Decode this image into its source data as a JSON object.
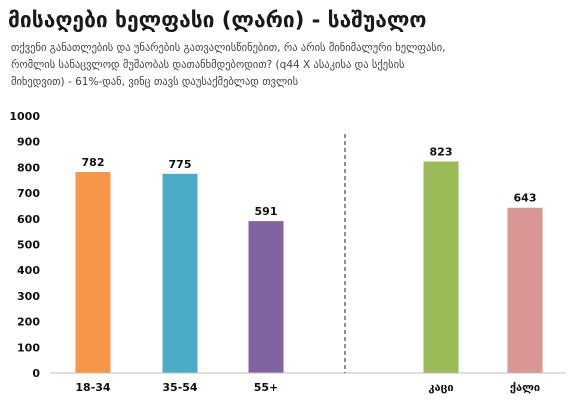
{
  "header": {
    "title": "მისაღები ხელფასი (ლარი) - საშუალო",
    "subtitle": "თქვენი განათლების და უნარების გათვალისწინებით, რა არის მინიმალური ხელფასი, რომლის სანაცვლოდ მუშაობას დათანხმდებოდით? (q44 X ასაკისა და სქესის მიხედვით) - 61%-დან, ვინც თავს დაუსაქმებლად თვლის"
  },
  "chart_data": {
    "type": "bar",
    "title": "მისაღები ხელფასი (ლარი) - საშუალო",
    "ylim": [
      0,
      1000
    ],
    "yticks": [
      0,
      100,
      200,
      300,
      400,
      500,
      600,
      700,
      800,
      900,
      1000
    ],
    "grid": false,
    "divider": "dashed vertical line between age groups and gender groups",
    "categories": [
      "18-34",
      "35-54",
      "55+",
      "კაცი",
      "ქალი"
    ],
    "values": [
      782,
      775,
      591,
      823,
      643
    ],
    "colors": [
      "#F79646",
      "#4BACC6",
      "#8064A2",
      "#9BBB59",
      "#D99694"
    ]
  }
}
